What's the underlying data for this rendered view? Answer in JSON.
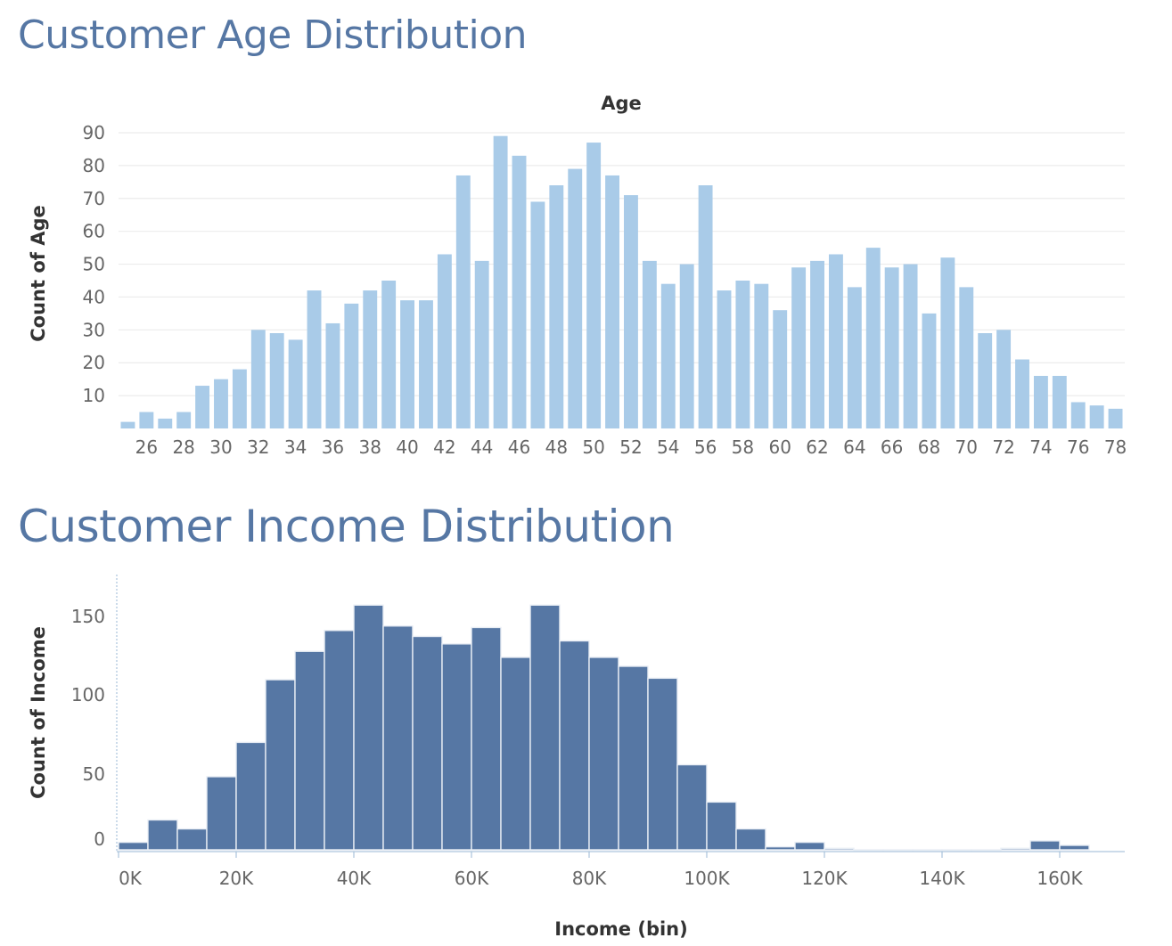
{
  "titles": {
    "age": "Customer Age Distribution",
    "income": "Customer Income Distribution"
  },
  "colors": {
    "title": "#5677a4",
    "age_bar": "#a9cbe8",
    "income_bar": "#5677a4",
    "grid": "#ececec"
  },
  "chart_data": [
    {
      "type": "bar",
      "title": "Customer Age Distribution",
      "xlabel": "Age",
      "ylabel": "Count of Age",
      "x": [
        25,
        26,
        27,
        28,
        29,
        30,
        31,
        32,
        33,
        34,
        35,
        36,
        37,
        38,
        39,
        40,
        41,
        42,
        43,
        44,
        45,
        46,
        47,
        48,
        49,
        50,
        51,
        52,
        53,
        54,
        55,
        56,
        57,
        58,
        59,
        60,
        61,
        62,
        63,
        64,
        65,
        66,
        67,
        68,
        69,
        70,
        71,
        72,
        73,
        74,
        75,
        76,
        77,
        78
      ],
      "values": [
        2,
        5,
        3,
        5,
        13,
        15,
        18,
        30,
        29,
        27,
        42,
        32,
        38,
        42,
        45,
        39,
        39,
        53,
        77,
        51,
        89,
        83,
        69,
        74,
        79,
        87,
        77,
        71,
        51,
        44,
        50,
        74,
        42,
        45,
        44,
        36,
        49,
        51,
        53,
        43,
        55,
        49,
        50,
        35,
        52,
        43,
        29,
        30,
        21,
        16,
        16,
        8,
        7,
        6
      ],
      "x_tick_labels": [
        "26",
        "28",
        "30",
        "32",
        "34",
        "36",
        "38",
        "40",
        "42",
        "44",
        "46",
        "48",
        "50",
        "52",
        "54",
        "56",
        "58",
        "60",
        "62",
        "64",
        "66",
        "68",
        "70",
        "72",
        "74",
        "76",
        "78"
      ],
      "y_tick_labels": [
        "10",
        "20",
        "30",
        "40",
        "50",
        "60",
        "70",
        "80",
        "90"
      ],
      "ylim": [
        0,
        93
      ],
      "grid": true
    },
    {
      "type": "bar",
      "title": "Customer Income Distribution",
      "xlabel": "Income (bin)",
      "ylabel": "Count of Income",
      "bin_width": 5000,
      "x": [
        0,
        5000,
        10000,
        15000,
        20000,
        25000,
        30000,
        35000,
        40000,
        45000,
        50000,
        55000,
        60000,
        65000,
        70000,
        75000,
        80000,
        85000,
        90000,
        95000,
        100000,
        105000,
        110000,
        115000,
        120000,
        125000,
        130000,
        135000,
        140000,
        145000,
        150000,
        155000,
        160000
      ],
      "values": [
        5,
        20,
        14,
        49,
        72,
        114,
        133,
        147,
        164,
        150,
        143,
        138,
        149,
        129,
        164,
        140,
        129,
        123,
        115,
        57,
        32,
        14,
        2,
        5,
        1,
        0,
        0,
        0,
        0,
        0,
        1,
        6,
        3
      ],
      "x_tick_labels": [
        "0K",
        "20K",
        "40K",
        "60K",
        "80K",
        "100K",
        "120K",
        "140K",
        "160K"
      ],
      "y_tick_labels": [
        "0",
        "50",
        "100",
        "150"
      ],
      "grid": false
    }
  ]
}
